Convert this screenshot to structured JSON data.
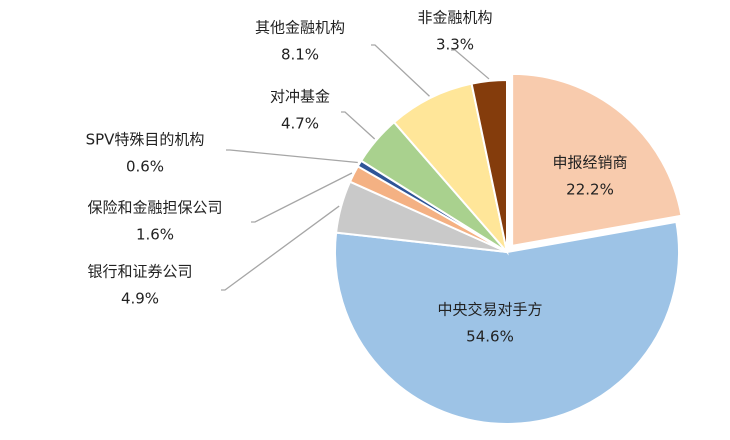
{
  "chart_data": {
    "type": "pie",
    "categories": [
      "申报经销商",
      "中央交易对手方",
      "银行和证券公司",
      "保险和金融担保公司",
      "SPV特殊目的机构",
      "对冲基金",
      "其他金融机构",
      "非金融机构"
    ],
    "values": [
      22.2,
      54.6,
      4.9,
      1.6,
      0.6,
      4.7,
      8.1,
      3.3
    ],
    "value_labels": [
      "22.2%",
      "54.6%",
      "4.9%",
      "1.6%",
      "0.6%",
      "4.7%",
      "8.1%",
      "3.3%"
    ],
    "colors": [
      "#f8cbad",
      "#9dc3e6",
      "#c9c9c9",
      "#f4b183",
      "#2f5597",
      "#a9d18e",
      "#ffe699",
      "#843c0c"
    ]
  }
}
